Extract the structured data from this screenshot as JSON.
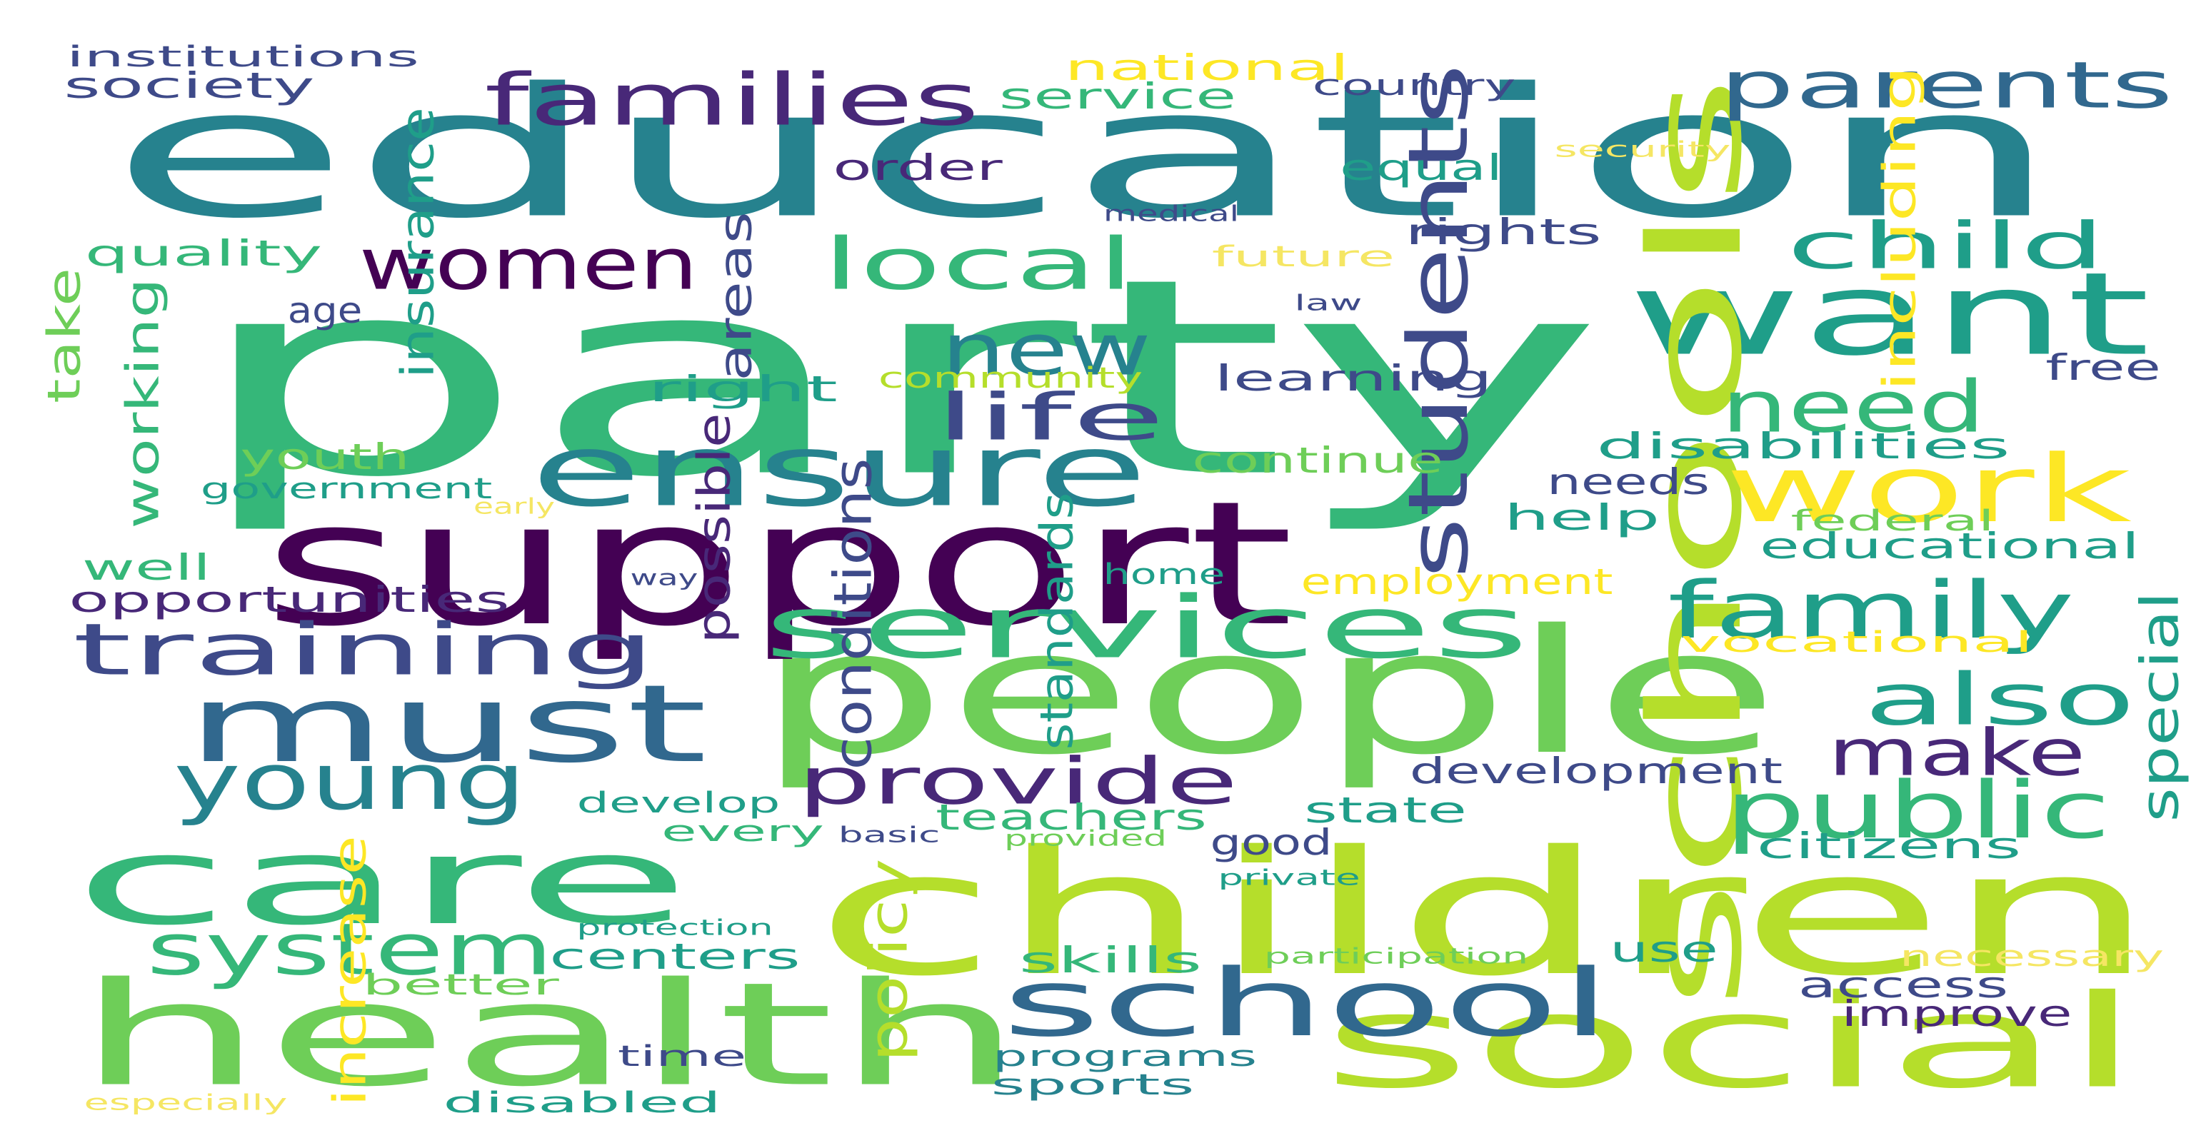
{
  "palette": {
    "c_dark_purple": "#440154",
    "c_indigo": "#482878",
    "c_slate": "#3e4a89",
    "c_blue": "#31688e",
    "c_teal": "#26828e",
    "c_teal_green": "#1f9e89",
    "c_green": "#35b779",
    "c_light_green": "#6ece58",
    "c_lime": "#b5de2b",
    "c_yellow": "#fde725",
    "c_pale_yellow": "#f5e663"
  },
  "words": [
    {
      "id": "education",
      "text": "education",
      "color": "c_teal"
    },
    {
      "id": "party",
      "text": "party",
      "color": "c_green"
    },
    {
      "id": "children",
      "text": "children",
      "color": "c_lime"
    },
    {
      "id": "people",
      "text": "people",
      "color": "c_light_green"
    },
    {
      "id": "support",
      "text": "support",
      "color": "c_dark_purple"
    },
    {
      "id": "health",
      "text": "health",
      "color": "c_light_green"
    },
    {
      "id": "care",
      "text": "care",
      "color": "c_green"
    },
    {
      "id": "social",
      "text": "social",
      "color": "c_lime"
    },
    {
      "id": "want",
      "text": "want",
      "color": "c_teal_green"
    },
    {
      "id": "school",
      "text": "school",
      "color": "c_blue"
    },
    {
      "id": "schools",
      "text": "schools",
      "color": "c_lime"
    },
    {
      "id": "ensure",
      "text": "ensure",
      "color": "c_teal"
    },
    {
      "id": "must",
      "text": "must",
      "color": "c_blue"
    },
    {
      "id": "families",
      "text": "families",
      "color": "c_indigo"
    },
    {
      "id": "parents",
      "text": "parents",
      "color": "c_blue"
    },
    {
      "id": "services",
      "text": "services",
      "color": "c_green"
    },
    {
      "id": "work",
      "text": "work",
      "color": "c_yellow"
    },
    {
      "id": "students",
      "text": "students",
      "color": "c_slate"
    },
    {
      "id": "training",
      "text": "training",
      "color": "c_slate"
    },
    {
      "id": "family",
      "text": "family",
      "color": "c_teal_green"
    },
    {
      "id": "women",
      "text": "women",
      "color": "c_dark_purple"
    },
    {
      "id": "local",
      "text": "local",
      "color": "c_green"
    },
    {
      "id": "child",
      "text": "child",
      "color": "c_teal_green"
    },
    {
      "id": "new",
      "text": "new",
      "color": "c_teal"
    },
    {
      "id": "life",
      "text": "life",
      "color": "c_slate"
    },
    {
      "id": "need",
      "text": "need",
      "color": "c_green"
    },
    {
      "id": "young",
      "text": "young",
      "color": "c_teal"
    },
    {
      "id": "system",
      "text": "system",
      "color": "c_green"
    },
    {
      "id": "provide",
      "text": "provide",
      "color": "c_indigo"
    },
    {
      "id": "also",
      "text": "also",
      "color": "c_teal_green"
    },
    {
      "id": "make",
      "text": "make",
      "color": "c_indigo"
    },
    {
      "id": "public",
      "text": "public",
      "color": "c_green"
    },
    {
      "id": "institutions",
      "text": "institutions",
      "color": "c_slate"
    },
    {
      "id": "society",
      "text": "society",
      "color": "c_slate"
    },
    {
      "id": "national",
      "text": "national",
      "color": "c_yellow"
    },
    {
      "id": "service",
      "text": "service",
      "color": "c_green"
    },
    {
      "id": "country",
      "text": "country",
      "color": "c_slate"
    },
    {
      "id": "order",
      "text": "order",
      "color": "c_indigo"
    },
    {
      "id": "equal",
      "text": "equal",
      "color": "c_teal_green"
    },
    {
      "id": "security",
      "text": "security",
      "color": "c_pale_yellow"
    },
    {
      "id": "medical",
      "text": "medical",
      "color": "c_slate"
    },
    {
      "id": "rights",
      "text": "rights",
      "color": "c_slate"
    },
    {
      "id": "quality",
      "text": "quality",
      "color": "c_green"
    },
    {
      "id": "future",
      "text": "future",
      "color": "c_pale_yellow"
    },
    {
      "id": "including",
      "text": "including",
      "color": "c_yellow"
    },
    {
      "id": "insurance",
      "text": "insurance",
      "color": "c_teal_green"
    },
    {
      "id": "age",
      "text": "age",
      "color": "c_slate"
    },
    {
      "id": "law",
      "text": "law",
      "color": "c_slate"
    },
    {
      "id": "take",
      "text": "take",
      "color": "c_light_green"
    },
    {
      "id": "working",
      "text": "working",
      "color": "c_green"
    },
    {
      "id": "areas",
      "text": "areas",
      "color": "c_slate"
    },
    {
      "id": "right",
      "text": "right",
      "color": "c_teal_green"
    },
    {
      "id": "community",
      "text": "community",
      "color": "c_lime"
    },
    {
      "id": "learning",
      "text": "learning",
      "color": "c_slate"
    },
    {
      "id": "free",
      "text": "free",
      "color": "c_slate"
    },
    {
      "id": "disabilities",
      "text": "disabilities",
      "color": "c_teal_green"
    },
    {
      "id": "youth",
      "text": "youth",
      "color": "c_light_green"
    },
    {
      "id": "government",
      "text": "government",
      "color": "c_teal_green"
    },
    {
      "id": "early",
      "text": "early",
      "color": "c_pale_yellow"
    },
    {
      "id": "continue",
      "text": "continue",
      "color": "c_light_green"
    },
    {
      "id": "needs",
      "text": "needs",
      "color": "c_slate"
    },
    {
      "id": "help",
      "text": "help",
      "color": "c_teal_green"
    },
    {
      "id": "federal",
      "text": "federal",
      "color": "c_light_green"
    },
    {
      "id": "possible",
      "text": "possible",
      "color": "c_indigo"
    },
    {
      "id": "conditions",
      "text": "conditions",
      "color": "c_slate"
    },
    {
      "id": "standards",
      "text": "standards",
      "color": "c_teal_green"
    },
    {
      "id": "well",
      "text": "well",
      "color": "c_green"
    },
    {
      "id": "way",
      "text": "way",
      "color": "c_slate"
    },
    {
      "id": "home",
      "text": "home",
      "color": "c_teal_green"
    },
    {
      "id": "employment",
      "text": "employment",
      "color": "c_yellow"
    },
    {
      "id": "educational",
      "text": "educational",
      "color": "c_teal_green"
    },
    {
      "id": "opportunities",
      "text": "opportunities",
      "color": "c_indigo"
    },
    {
      "id": "vocational",
      "text": "vocational",
      "color": "c_yellow"
    },
    {
      "id": "special",
      "text": "special",
      "color": "c_teal_green"
    },
    {
      "id": "development",
      "text": "development",
      "color": "c_slate"
    },
    {
      "id": "develop",
      "text": "develop",
      "color": "c_teal_green"
    },
    {
      "id": "teachers",
      "text": "teachers",
      "color": "c_green"
    },
    {
      "id": "state",
      "text": "state",
      "color": "c_teal_green"
    },
    {
      "id": "every",
      "text": "every",
      "color": "c_green"
    },
    {
      "id": "basic",
      "text": "basic",
      "color": "c_slate"
    },
    {
      "id": "provided",
      "text": "provided",
      "color": "c_light_green"
    },
    {
      "id": "good",
      "text": "good",
      "color": "c_slate"
    },
    {
      "id": "citizens",
      "text": "citizens",
      "color": "c_teal_green"
    },
    {
      "id": "private",
      "text": "private",
      "color": "c_teal_green"
    },
    {
      "id": "increase",
      "text": "increase",
      "color": "c_yellow"
    },
    {
      "id": "policy",
      "text": "policy",
      "color": "c_lime"
    },
    {
      "id": "protection",
      "text": "protection",
      "color": "c_teal_green"
    },
    {
      "id": "centers",
      "text": "centers",
      "color": "c_teal_green"
    },
    {
      "id": "skills",
      "text": "skills",
      "color": "c_green"
    },
    {
      "id": "participation",
      "text": "participation",
      "color": "c_light_green"
    },
    {
      "id": "use",
      "text": "use",
      "color": "c_teal_green"
    },
    {
      "id": "necessary",
      "text": "necessary",
      "color": "c_pale_yellow"
    },
    {
      "id": "better",
      "text": "better",
      "color": "c_light_green"
    },
    {
      "id": "access",
      "text": "access",
      "color": "c_slate"
    },
    {
      "id": "improve",
      "text": "improve",
      "color": "c_indigo"
    },
    {
      "id": "time",
      "text": "time",
      "color": "c_slate"
    },
    {
      "id": "programs",
      "text": "programs",
      "color": "c_teal"
    },
    {
      "id": "sports",
      "text": "sports",
      "color": "c_teal"
    },
    {
      "id": "disabled",
      "text": "disabled",
      "color": "c_teal_green"
    },
    {
      "id": "especially",
      "text": "especially",
      "color": "c_pale_yellow"
    }
  ]
}
